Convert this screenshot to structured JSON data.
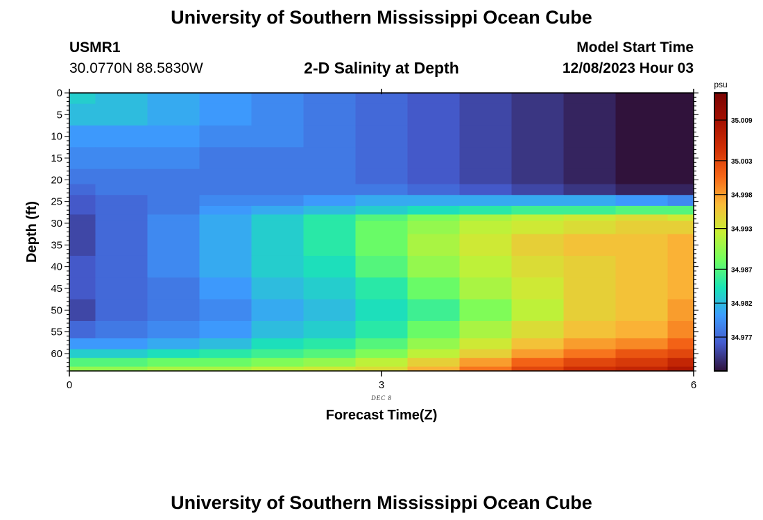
{
  "page": {
    "title": "University of Southern Mississippi Ocean Cube",
    "footer_title": "University of Southern Mississippi Ocean Cube"
  },
  "header": {
    "station": "USMR1",
    "coords": "30.0770N  88.5830W",
    "model_start_label": "Model Start Time",
    "model_start_value": "12/08/2023 Hour 03"
  },
  "chart_data": {
    "type": "heatmap",
    "title": "2-D Salinity at Depth",
    "xlabel": "Forecast Time(Z)",
    "ylabel": "Depth (ft)",
    "date_label": "DEC 8",
    "x_ticks": [
      0,
      3,
      6
    ],
    "y_ticks": [
      0,
      5,
      10,
      15,
      20,
      25,
      30,
      35,
      40,
      45,
      50,
      55,
      60
    ],
    "xlim": [
      0,
      6
    ],
    "ylim": [
      0,
      64
    ],
    "colorbar": {
      "unit": "psu",
      "ticks": [
        35.009,
        35.003,
        34.998,
        34.993,
        34.987,
        34.982,
        34.977
      ],
      "tick_labels": [
        "35.009",
        "35.003",
        "34.998",
        "34.993",
        "34.987",
        "34.982",
        "34.977"
      ],
      "range": [
        34.972,
        35.013
      ]
    },
    "x": [
      0,
      0.5,
      1,
      1.5,
      2,
      2.5,
      3,
      3.5,
      4,
      4.5,
      5,
      5.5,
      6
    ],
    "depth": [
      0,
      5,
      10,
      15,
      20,
      22,
      25,
      27,
      29,
      30,
      35,
      40,
      45,
      50,
      55,
      58,
      60,
      62,
      64
    ],
    "values": [
      [
        34.983,
        34.982,
        34.981,
        34.98,
        34.979,
        34.978,
        34.977,
        34.976,
        34.975,
        34.974,
        34.973,
        34.972,
        34.971
      ],
      [
        34.982,
        34.982,
        34.981,
        34.98,
        34.979,
        34.978,
        34.977,
        34.976,
        34.975,
        34.974,
        34.973,
        34.972,
        34.97
      ],
      [
        34.98,
        34.98,
        34.98,
        34.979,
        34.979,
        34.978,
        34.977,
        34.976,
        34.975,
        34.974,
        34.973,
        34.971,
        34.97
      ],
      [
        34.979,
        34.979,
        34.979,
        34.978,
        34.978,
        34.978,
        34.977,
        34.976,
        34.975,
        34.974,
        34.973,
        34.971,
        34.97
      ],
      [
        34.978,
        34.978,
        34.978,
        34.978,
        34.978,
        34.978,
        34.977,
        34.976,
        34.975,
        34.974,
        34.973,
        34.972,
        34.971
      ],
      [
        34.977,
        34.978,
        34.978,
        34.978,
        34.978,
        34.978,
        34.978,
        34.977,
        34.976,
        34.975,
        34.974,
        34.973,
        34.973
      ],
      [
        34.976,
        34.977,
        34.978,
        34.979,
        34.979,
        34.98,
        34.981,
        34.981,
        34.981,
        34.981,
        34.981,
        34.98,
        34.979
      ],
      [
        34.976,
        34.977,
        34.978,
        34.98,
        34.981,
        34.982,
        34.983,
        34.984,
        34.985,
        34.986,
        34.986,
        34.987,
        34.987
      ],
      [
        34.975,
        34.977,
        34.979,
        34.981,
        34.983,
        34.985,
        34.987,
        34.989,
        34.991,
        34.992,
        34.993,
        34.994,
        34.993
      ],
      [
        34.975,
        34.977,
        34.979,
        34.981,
        34.983,
        34.985,
        34.988,
        34.99,
        34.992,
        34.993,
        34.994,
        34.995,
        34.995
      ],
      [
        34.975,
        34.977,
        34.979,
        34.981,
        34.983,
        34.985,
        34.988,
        34.991,
        34.993,
        34.995,
        34.996,
        34.996,
        34.997
      ],
      [
        34.976,
        34.977,
        34.979,
        34.981,
        34.983,
        34.984,
        34.987,
        34.99,
        34.992,
        34.994,
        34.995,
        34.996,
        34.997
      ],
      [
        34.976,
        34.977,
        34.978,
        34.98,
        34.982,
        34.983,
        34.985,
        34.988,
        34.991,
        34.993,
        34.995,
        34.996,
        34.997
      ],
      [
        34.975,
        34.977,
        34.978,
        34.979,
        34.981,
        34.982,
        34.984,
        34.986,
        34.989,
        34.992,
        34.995,
        34.996,
        34.998
      ],
      [
        34.977,
        34.978,
        34.979,
        34.98,
        34.982,
        34.983,
        34.985,
        34.988,
        34.991,
        34.994,
        34.996,
        34.997,
        34.999
      ],
      [
        34.98,
        34.98,
        34.981,
        34.982,
        34.984,
        34.985,
        34.987,
        34.99,
        34.993,
        34.996,
        34.998,
        34.999,
        35.001
      ],
      [
        34.983,
        34.983,
        34.984,
        34.985,
        34.986,
        34.987,
        34.989,
        34.992,
        34.995,
        34.998,
        35.0,
        35.002,
        35.003
      ],
      [
        34.987,
        34.987,
        34.988,
        34.988,
        34.989,
        34.99,
        34.992,
        34.995,
        34.998,
        35.001,
        35.003,
        35.004,
        35.006
      ],
      [
        34.99,
        34.99,
        34.991,
        34.991,
        34.992,
        34.993,
        34.994,
        34.997,
        35.0,
        35.003,
        35.005,
        35.006,
        35.008
      ]
    ]
  }
}
